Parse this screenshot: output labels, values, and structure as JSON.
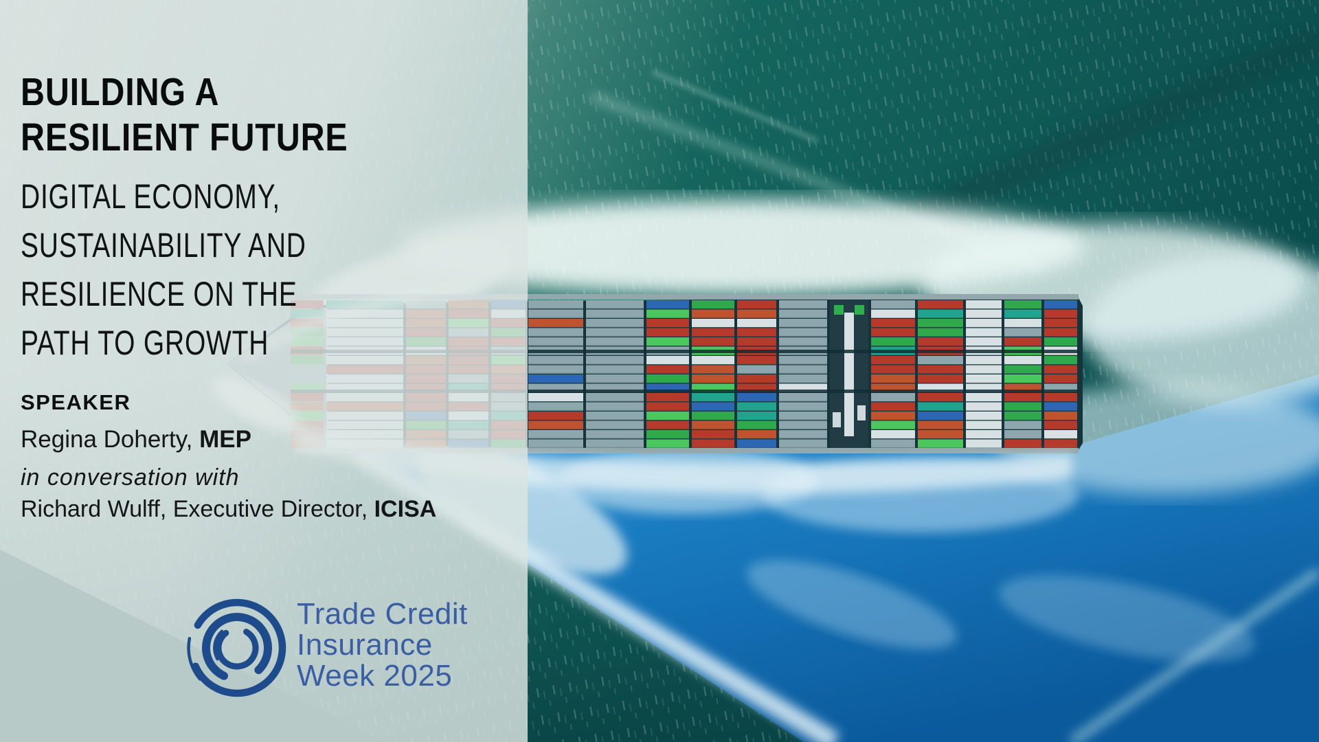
{
  "title": {
    "line1": "BUILDING A",
    "line2": "RESILIENT FUTURE"
  },
  "subtitle": {
    "line1": "DIGITAL ECONOMY,",
    "line2": "SUSTAINABILITY AND",
    "line3": "RESILIENCE ON THE",
    "line4": "PATH TO GROWTH"
  },
  "speaker": {
    "heading": "SPEAKER",
    "name": "Regina Doherty,",
    "credential": "MEP",
    "note": "in conversation with",
    "host_name": "Richard Wulff, Executive Director,",
    "host_org": "ICISA"
  },
  "logo": {
    "line1": "Trade Credit",
    "line2": "Insurance",
    "line3": "Week 2025",
    "icon": "swirl-circles-icon"
  },
  "colors": {
    "accent_blue": "#1d4b8b",
    "logo_text_blue": "#3a5ea4",
    "text_dark": "#0e0f10",
    "veil": "#dbe4e2",
    "sea_light": "#c6d5d3",
    "sea_dark": "#0b4e4e",
    "wake_blue": "#1c7fc6",
    "foam_white": "#eef7f5",
    "containers": {
      "red": "#b53a2b",
      "rust": "#bf5330",
      "green": "#2fa94b",
      "lime": "#4cc75d",
      "teal": "#21a38d",
      "blue": "#2d66b3",
      "grey": "#8ea6ad",
      "white": "#d7e0e2"
    }
  }
}
